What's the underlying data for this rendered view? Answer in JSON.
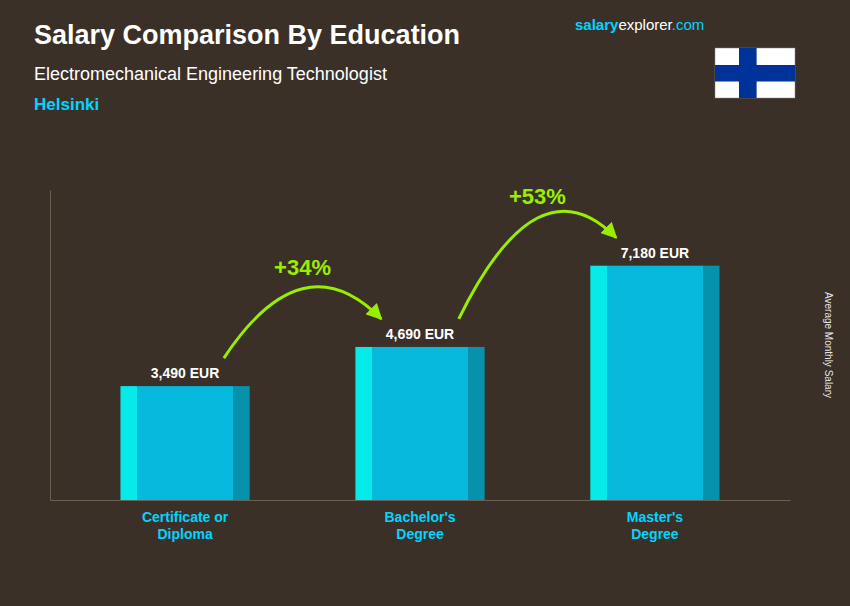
{
  "chart_data": {
    "type": "bar",
    "title": "Salary Comparison By Education",
    "subtitle": [
      "Electromechanical Engineering Technologist",
      "Helsinki"
    ],
    "source": [
      "salary",
      "explorer",
      ".com"
    ],
    "y_label": "Average Monthly Salary",
    "categories": [
      "Certificate or\nDiploma",
      "Bachelor's\nDegree",
      "Master's\nDegree"
    ],
    "values": [
      3490,
      4690,
      7180
    ],
    "value_labels": [
      "3,490 EUR",
      "4,690 EUR",
      "7,180 EUR"
    ],
    "data_labels": true,
    "color": "#00c8f0",
    "annotations": [
      "+34%",
      "+53%"
    ],
    "ylim": [
      0,
      9500
    ],
    "tick_labels": false,
    "grid": false
  }
}
